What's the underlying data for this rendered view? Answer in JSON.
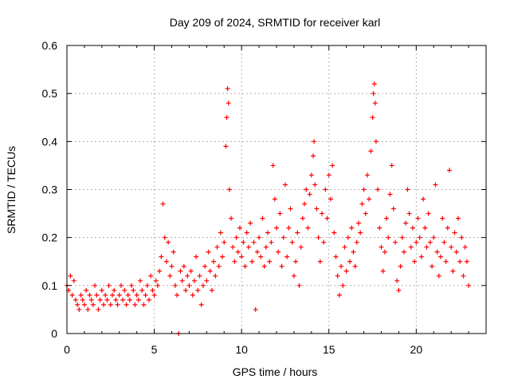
{
  "chart_data": {
    "type": "scatter",
    "title": "Day 209 of 2024, SRMTID for receiver karl",
    "xlabel": "GPS time / hours",
    "ylabel": "SRMTID / TECUs",
    "xlim": [
      0,
      24
    ],
    "ylim": [
      0,
      0.6
    ],
    "x_ticks": [
      0,
      5,
      10,
      15,
      20
    ],
    "x_tick_labels": [
      "0",
      "5",
      "10",
      "15",
      "20"
    ],
    "y_ticks": [
      0,
      0.1,
      0.2,
      0.3,
      0.4,
      0.5,
      0.6
    ],
    "y_tick_labels": [
      "0",
      "0.1",
      "0.2",
      "0.3",
      "0.4",
      "0.5",
      "0.6"
    ],
    "grid": true,
    "marker": "+",
    "color": "#ff0000",
    "series": [
      {
        "name": "SRMTID",
        "points": [
          [
            0.0,
            0.1
          ],
          [
            0.1,
            0.09
          ],
          [
            0.2,
            0.12
          ],
          [
            0.3,
            0.08
          ],
          [
            0.4,
            0.11
          ],
          [
            0.5,
            0.07
          ],
          [
            0.6,
            0.06
          ],
          [
            0.7,
            0.05
          ],
          [
            0.8,
            0.08
          ],
          [
            0.9,
            0.07
          ],
          [
            1.0,
            0.06
          ],
          [
            1.1,
            0.09
          ],
          [
            1.2,
            0.05
          ],
          [
            1.3,
            0.08
          ],
          [
            1.4,
            0.07
          ],
          [
            1.5,
            0.06
          ],
          [
            1.6,
            0.1
          ],
          [
            1.7,
            0.08
          ],
          [
            1.8,
            0.05
          ],
          [
            1.9,
            0.07
          ],
          [
            2.0,
            0.09
          ],
          [
            2.1,
            0.06
          ],
          [
            2.2,
            0.08
          ],
          [
            2.3,
            0.07
          ],
          [
            2.4,
            0.1
          ],
          [
            2.5,
            0.06
          ],
          [
            2.6,
            0.08
          ],
          [
            2.7,
            0.09
          ],
          [
            2.8,
            0.07
          ],
          [
            2.9,
            0.06
          ],
          [
            3.0,
            0.08
          ],
          [
            3.1,
            0.1
          ],
          [
            3.2,
            0.07
          ],
          [
            3.3,
            0.09
          ],
          [
            3.4,
            0.06
          ],
          [
            3.5,
            0.08
          ],
          [
            3.6,
            0.07
          ],
          [
            3.7,
            0.1
          ],
          [
            3.8,
            0.09
          ],
          [
            3.9,
            0.06
          ],
          [
            4.0,
            0.08
          ],
          [
            4.1,
            0.07
          ],
          [
            4.2,
            0.11
          ],
          [
            4.3,
            0.09
          ],
          [
            4.4,
            0.06
          ],
          [
            4.5,
            0.08
          ],
          [
            4.6,
            0.1
          ],
          [
            4.7,
            0.07
          ],
          [
            4.8,
            0.12
          ],
          [
            4.9,
            0.09
          ],
          [
            5.0,
            0.08
          ],
          [
            5.1,
            0.11
          ],
          [
            5.2,
            0.1
          ],
          [
            5.3,
            0.13
          ],
          [
            5.4,
            0.16
          ],
          [
            5.5,
            0.27
          ],
          [
            5.6,
            0.2
          ],
          [
            5.7,
            0.15
          ],
          [
            5.8,
            0.19
          ],
          [
            5.9,
            0.12
          ],
          [
            6.0,
            0.14
          ],
          [
            6.1,
            0.17
          ],
          [
            6.2,
            0.1
          ],
          [
            6.3,
            0.08
          ],
          [
            6.4,
            0.0
          ],
          [
            6.5,
            0.13
          ],
          [
            6.6,
            0.11
          ],
          [
            6.7,
            0.14
          ],
          [
            6.8,
            0.09
          ],
          [
            6.9,
            0.12
          ],
          [
            7.0,
            0.1
          ],
          [
            7.1,
            0.13
          ],
          [
            7.2,
            0.08
          ],
          [
            7.3,
            0.11
          ],
          [
            7.4,
            0.16
          ],
          [
            7.5,
            0.09
          ],
          [
            7.6,
            0.12
          ],
          [
            7.7,
            0.06
          ],
          [
            7.8,
            0.1
          ],
          [
            7.9,
            0.14
          ],
          [
            8.0,
            0.11
          ],
          [
            8.1,
            0.17
          ],
          [
            8.2,
            0.13
          ],
          [
            8.3,
            0.09
          ],
          [
            8.4,
            0.15
          ],
          [
            8.5,
            0.12
          ],
          [
            8.6,
            0.18
          ],
          [
            8.7,
            0.14
          ],
          [
            8.8,
            0.21
          ],
          [
            8.9,
            0.16
          ],
          [
            9.0,
            0.19
          ],
          [
            9.1,
            0.39
          ],
          [
            9.15,
            0.45
          ],
          [
            9.2,
            0.51
          ],
          [
            9.25,
            0.48
          ],
          [
            9.3,
            0.3
          ],
          [
            9.4,
            0.24
          ],
          [
            9.5,
            0.18
          ],
          [
            9.6,
            0.15
          ],
          [
            9.7,
            0.2
          ],
          [
            9.8,
            0.17
          ],
          [
            9.9,
            0.22
          ],
          [
            10.0,
            0.16
          ],
          [
            10.1,
            0.19
          ],
          [
            10.2,
            0.14
          ],
          [
            10.3,
            0.21
          ],
          [
            10.4,
            0.18
          ],
          [
            10.5,
            0.23
          ],
          [
            10.6,
            0.15
          ],
          [
            10.7,
            0.19
          ],
          [
            10.8,
            0.05
          ],
          [
            10.9,
            0.17
          ],
          [
            11.0,
            0.2
          ],
          [
            11.1,
            0.16
          ],
          [
            11.2,
            0.24
          ],
          [
            11.3,
            0.14
          ],
          [
            11.4,
            0.18
          ],
          [
            11.5,
            0.21
          ],
          [
            11.6,
            0.15
          ],
          [
            11.7,
            0.19
          ],
          [
            11.8,
            0.35
          ],
          [
            11.9,
            0.28
          ],
          [
            12.0,
            0.22
          ],
          [
            12.1,
            0.17
          ],
          [
            12.2,
            0.25
          ],
          [
            12.3,
            0.14
          ],
          [
            12.4,
            0.2
          ],
          [
            12.5,
            0.31
          ],
          [
            12.6,
            0.16
          ],
          [
            12.7,
            0.22
          ],
          [
            12.8,
            0.26
          ],
          [
            12.9,
            0.19
          ],
          [
            13.0,
            0.12
          ],
          [
            13.1,
            0.15
          ],
          [
            13.2,
            0.21
          ],
          [
            13.3,
            0.1
          ],
          [
            13.4,
            0.18
          ],
          [
            13.5,
            0.24
          ],
          [
            13.6,
            0.27
          ],
          [
            13.7,
            0.3
          ],
          [
            13.8,
            0.22
          ],
          [
            13.9,
            0.29
          ],
          [
            14.0,
            0.33
          ],
          [
            14.1,
            0.37
          ],
          [
            14.15,
            0.4
          ],
          [
            14.2,
            0.31
          ],
          [
            14.3,
            0.26
          ],
          [
            14.4,
            0.2
          ],
          [
            14.5,
            0.15
          ],
          [
            14.6,
            0.25
          ],
          [
            14.7,
            0.19
          ],
          [
            14.8,
            0.3
          ],
          [
            14.9,
            0.24
          ],
          [
            15.0,
            0.33
          ],
          [
            15.1,
            0.28
          ],
          [
            15.2,
            0.35
          ],
          [
            15.3,
            0.21
          ],
          [
            15.4,
            0.16
          ],
          [
            15.5,
            0.12
          ],
          [
            15.6,
            0.08
          ],
          [
            15.7,
            0.14
          ],
          [
            15.8,
            0.1
          ],
          [
            15.9,
            0.18
          ],
          [
            16.0,
            0.13
          ],
          [
            16.1,
            0.2
          ],
          [
            16.2,
            0.15
          ],
          [
            16.3,
            0.22
          ],
          [
            16.4,
            0.17
          ],
          [
            16.5,
            0.14
          ],
          [
            16.6,
            0.19
          ],
          [
            16.7,
            0.23
          ],
          [
            16.8,
            0.21
          ],
          [
            16.9,
            0.27
          ],
          [
            17.0,
            0.3
          ],
          [
            17.1,
            0.25
          ],
          [
            17.2,
            0.33
          ],
          [
            17.3,
            0.28
          ],
          [
            17.4,
            0.38
          ],
          [
            17.5,
            0.45
          ],
          [
            17.55,
            0.5
          ],
          [
            17.6,
            0.52
          ],
          [
            17.65,
            0.48
          ],
          [
            17.7,
            0.4
          ],
          [
            17.8,
            0.3
          ],
          [
            17.9,
            0.22
          ],
          [
            18.0,
            0.18
          ],
          [
            18.1,
            0.13
          ],
          [
            18.2,
            0.17
          ],
          [
            18.3,
            0.24
          ],
          [
            18.4,
            0.2
          ],
          [
            18.5,
            0.29
          ],
          [
            18.6,
            0.35
          ],
          [
            18.7,
            0.26
          ],
          [
            18.8,
            0.19
          ],
          [
            18.9,
            0.11
          ],
          [
            19.0,
            0.09
          ],
          [
            19.1,
            0.14
          ],
          [
            19.2,
            0.2
          ],
          [
            19.3,
            0.17
          ],
          [
            19.4,
            0.23
          ],
          [
            19.5,
            0.3
          ],
          [
            19.6,
            0.25
          ],
          [
            19.7,
            0.18
          ],
          [
            19.8,
            0.22
          ],
          [
            19.9,
            0.15
          ],
          [
            20.0,
            0.19
          ],
          [
            20.1,
            0.24
          ],
          [
            20.2,
            0.2
          ],
          [
            20.3,
            0.16
          ],
          [
            20.4,
            0.28
          ],
          [
            20.5,
            0.22
          ],
          [
            20.6,
            0.18
          ],
          [
            20.7,
            0.25
          ],
          [
            20.8,
            0.19
          ],
          [
            20.9,
            0.14
          ],
          [
            21.0,
            0.2
          ],
          [
            21.1,
            0.31
          ],
          [
            21.2,
            0.17
          ],
          [
            21.3,
            0.12
          ],
          [
            21.4,
            0.16
          ],
          [
            21.5,
            0.24
          ],
          [
            21.6,
            0.19
          ],
          [
            21.7,
            0.15
          ],
          [
            21.8,
            0.22
          ],
          [
            21.9,
            0.34
          ],
          [
            22.0,
            0.18
          ],
          [
            22.1,
            0.13
          ],
          [
            22.2,
            0.21
          ],
          [
            22.3,
            0.17
          ],
          [
            22.4,
            0.24
          ],
          [
            22.5,
            0.15
          ],
          [
            22.6,
            0.2
          ],
          [
            22.7,
            0.12
          ],
          [
            22.8,
            0.18
          ],
          [
            22.9,
            0.15
          ],
          [
            23.0,
            0.1
          ]
        ]
      }
    ]
  }
}
